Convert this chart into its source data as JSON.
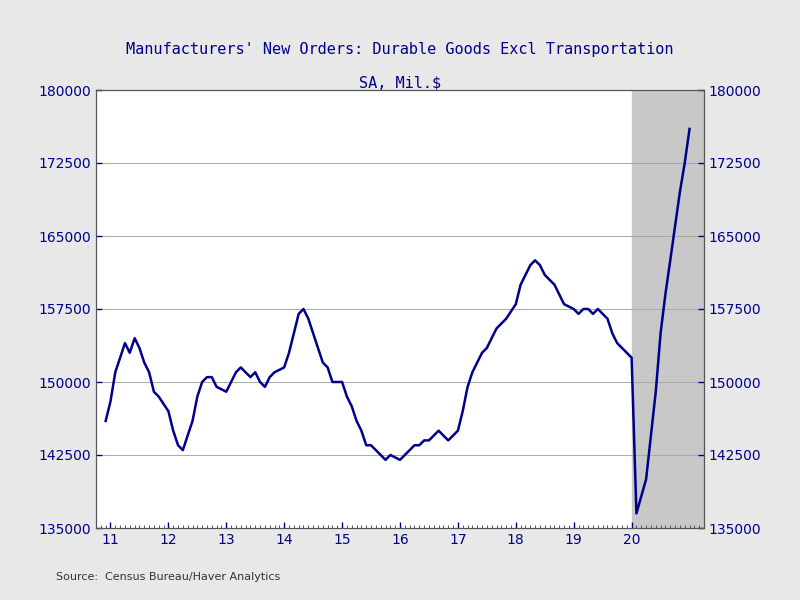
{
  "title1": "Manufacturers' New Orders: Durable Goods Excl Transportation",
  "title2": "SA, Mil.$",
  "source": "Source:  Census Bureau/Haver Analytics",
  "line_color": "#00008B",
  "bg_color": "#E8E8E8",
  "plot_bg_color": "#FFFFFF",
  "shade_color": "#C8C8C8",
  "ylim": [
    135000,
    180000
  ],
  "yticks": [
    135000,
    142500,
    150000,
    157500,
    165000,
    172500,
    180000
  ],
  "xlim_start": 10.75,
  "xlim_end": 21.25,
  "xticks": [
    11,
    12,
    13,
    14,
    15,
    16,
    17,
    18,
    19,
    20
  ],
  "shade_start": 20.0,
  "shade_end": 21.25,
  "data_x": [
    10.917,
    11.0,
    11.083,
    11.167,
    11.25,
    11.333,
    11.417,
    11.5,
    11.583,
    11.667,
    11.75,
    11.833,
    12.0,
    12.083,
    12.167,
    12.25,
    12.333,
    12.417,
    12.5,
    12.583,
    12.667,
    12.75,
    12.833,
    13.0,
    13.083,
    13.167,
    13.25,
    13.333,
    13.417,
    13.5,
    13.583,
    13.667,
    13.75,
    13.833,
    14.0,
    14.083,
    14.167,
    14.25,
    14.333,
    14.417,
    14.5,
    14.583,
    14.667,
    14.75,
    14.833,
    15.0,
    15.083,
    15.167,
    15.25,
    15.333,
    15.417,
    15.5,
    15.583,
    15.667,
    15.75,
    15.833,
    16.0,
    16.083,
    16.167,
    16.25,
    16.333,
    16.417,
    16.5,
    16.583,
    16.667,
    16.75,
    16.833,
    17.0,
    17.083,
    17.167,
    17.25,
    17.333,
    17.417,
    17.5,
    17.583,
    17.667,
    17.75,
    17.833,
    18.0,
    18.083,
    18.167,
    18.25,
    18.333,
    18.417,
    18.5,
    18.583,
    18.667,
    18.75,
    18.833,
    19.0,
    19.083,
    19.167,
    19.25,
    19.333,
    19.417,
    19.5,
    19.583,
    19.667,
    19.75,
    19.833,
    20.0,
    20.083,
    20.25,
    20.417,
    20.5,
    20.583,
    20.667,
    20.75,
    20.833,
    20.917,
    21.0
  ],
  "data_y": [
    146000,
    148000,
    151000,
    152500,
    154000,
    153000,
    154500,
    153500,
    152000,
    151000,
    149000,
    148500,
    147000,
    145000,
    143500,
    143000,
    144500,
    146000,
    148500,
    150000,
    150500,
    150500,
    149500,
    149000,
    150000,
    151000,
    151500,
    151000,
    150500,
    151000,
    150000,
    149500,
    150500,
    151000,
    151500,
    153000,
    155000,
    157000,
    157500,
    156500,
    155000,
    153500,
    152000,
    151500,
    150000,
    150000,
    148500,
    147500,
    146000,
    145000,
    143500,
    143500,
    143000,
    142500,
    142000,
    142500,
    142000,
    142500,
    143000,
    143500,
    143500,
    144000,
    144000,
    144500,
    145000,
    144500,
    144000,
    145000,
    147000,
    149500,
    151000,
    152000,
    153000,
    153500,
    154500,
    155500,
    156000,
    156500,
    158000,
    160000,
    161000,
    162000,
    162500,
    162000,
    161000,
    160500,
    160000,
    159000,
    158000,
    157500,
    157000,
    157500,
    157500,
    157000,
    157500,
    157000,
    156500,
    155000,
    154000,
    153500,
    152500,
    136500,
    140000,
    149000,
    155000,
    159000,
    162500,
    166000,
    169500,
    172500,
    176000
  ]
}
